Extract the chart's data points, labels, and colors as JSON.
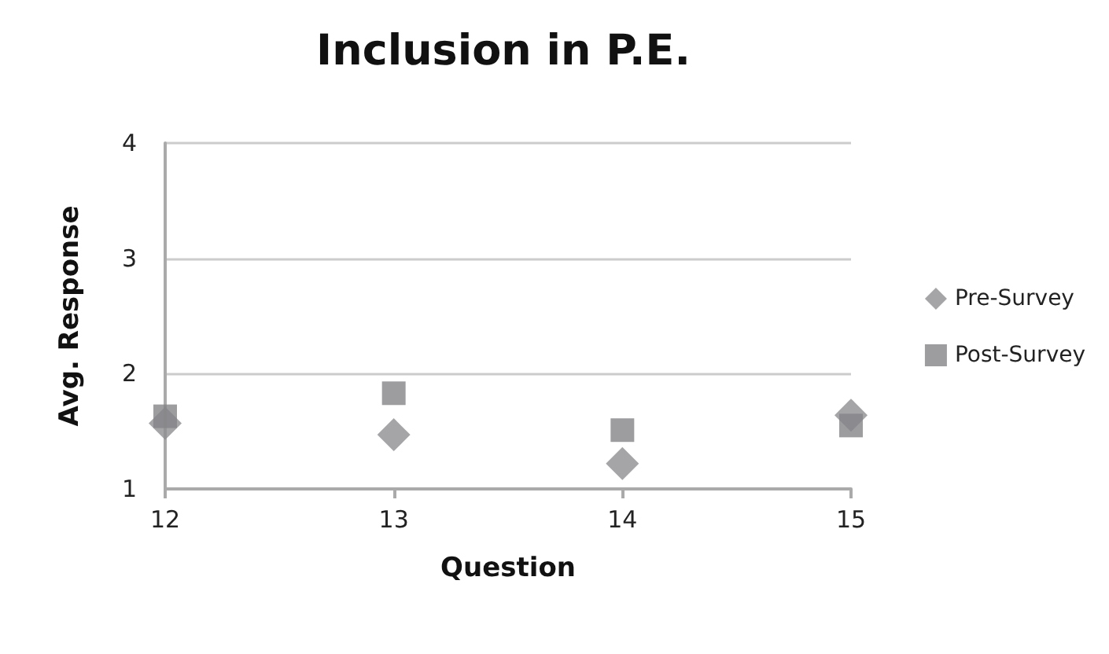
{
  "chart_data": {
    "type": "scatter",
    "title": "Inclusion in P.E.",
    "xlabel": "Question",
    "ylabel": "Avg. Response",
    "x": [
      12,
      13,
      14,
      15
    ],
    "series": [
      {
        "name": "Pre-Survey",
        "color": "#8e8e92",
        "marker": "diamond",
        "values": [
          1.57,
          1.47,
          1.22,
          1.64
        ]
      },
      {
        "name": "Post-Survey",
        "color": "#848488",
        "marker": "square",
        "values": [
          1.63,
          1.83,
          1.51,
          1.55
        ]
      }
    ],
    "xlim": [
      12,
      15
    ],
    "xticks": [
      12,
      13,
      14,
      15
    ],
    "ylim": [
      1,
      4
    ],
    "yticks": [
      1,
      2,
      3,
      4
    ],
    "grid": "y",
    "legend": "right"
  }
}
